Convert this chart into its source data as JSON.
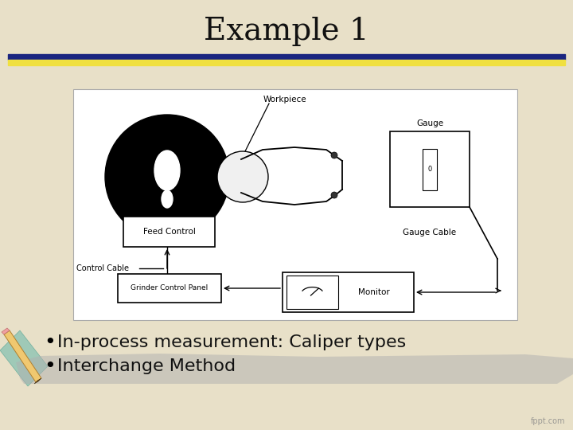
{
  "title": "Example 1",
  "bullet1": "In-process measurement: Caliper types",
  "bullet2": "Interchange Method",
  "bg_color_top": "#e8e0c8",
  "bg_color_bot": "#d8d0b0",
  "bar_blue": "#1a2580",
  "bar_yellow": "#f0e040",
  "text_color": "#111111",
  "title_fontsize": 28,
  "bullet_fontsize": 16
}
